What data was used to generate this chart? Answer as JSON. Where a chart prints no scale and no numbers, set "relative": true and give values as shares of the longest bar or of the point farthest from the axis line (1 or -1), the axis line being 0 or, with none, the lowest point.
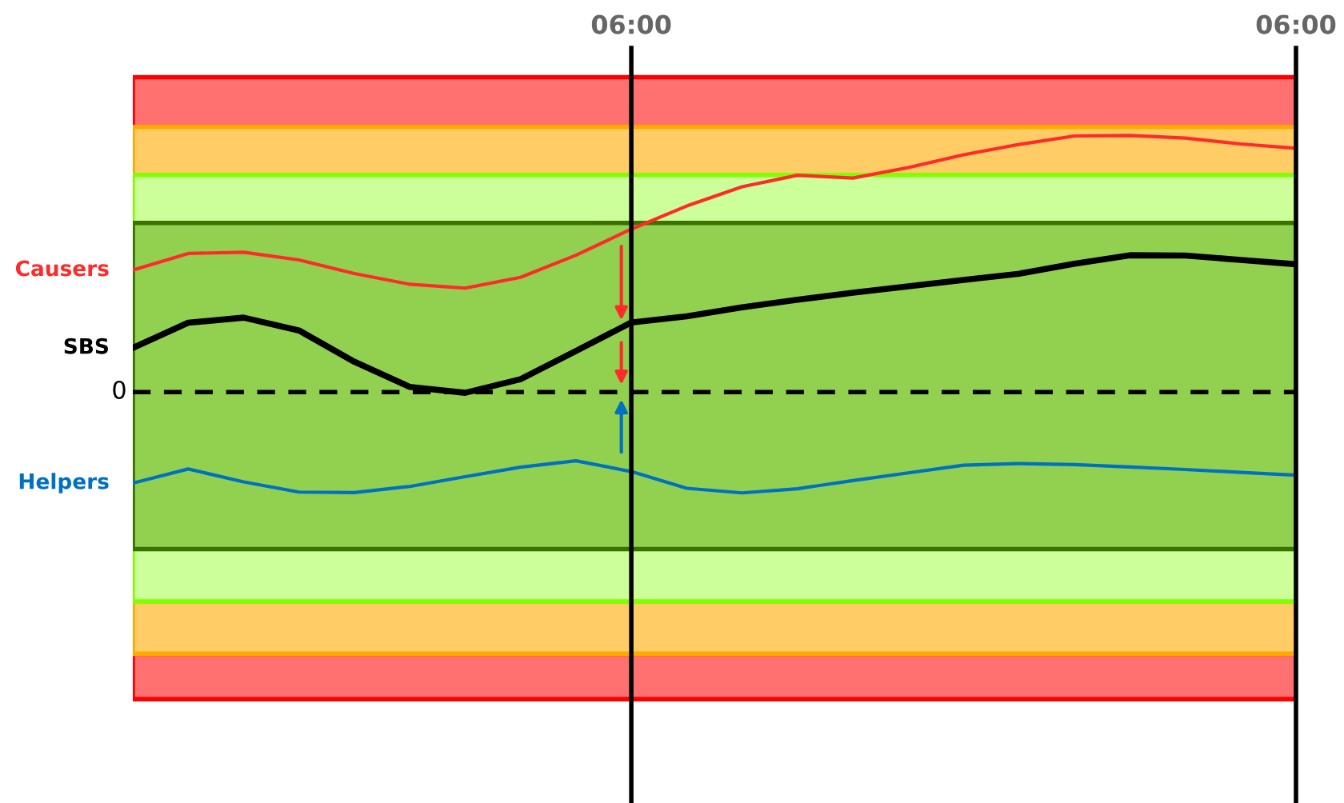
{
  "chart_data": {
    "type": "line",
    "relative": true,
    "tick_labels": "x",
    "categories": [
      null,
      null,
      null,
      null,
      null,
      null,
      null,
      null,
      null,
      "06:00",
      null,
      null,
      null,
      null,
      null,
      null,
      null,
      null,
      null,
      null,
      null,
      "06:00"
    ],
    "series": [
      {
        "name": "Causers",
        "color": "#ff2a2a",
        "values": [
          0.475,
          0.54,
          0.545,
          0.515,
          0.462,
          0.42,
          0.405,
          0.447,
          0.533,
          0.635,
          0.725,
          0.8,
          0.845,
          0.834,
          0.875,
          0.925,
          0.965,
          0.998,
          1.0,
          0.99,
          0.967,
          0.95
        ]
      },
      {
        "name": "SBS",
        "color": "#000000",
        "values": [
          0.172,
          0.27,
          0.29,
          0.24,
          0.118,
          0.02,
          -0.003,
          0.05,
          0.16,
          0.271,
          0.295,
          0.33,
          0.36,
          0.387,
          0.412,
          0.437,
          0.461,
          0.5,
          0.533,
          0.532,
          0.515,
          0.498
        ]
      },
      {
        "name": "Helpers",
        "color": "#0070c0",
        "values": [
          -0.355,
          -0.3,
          -0.35,
          -0.39,
          -0.392,
          -0.368,
          -0.33,
          -0.293,
          -0.268,
          -0.31,
          -0.375,
          -0.393,
          -0.377,
          -0.345,
          -0.315,
          -0.285,
          -0.279,
          -0.283,
          -0.292,
          -0.302,
          -0.313,
          -0.324
        ]
      }
    ],
    "bands": [
      {
        "axis": "y",
        "from": 1.033,
        "to": 1.227,
        "color": "#ff7070"
      },
      {
        "axis": "y",
        "from": 0.846,
        "to": 1.033,
        "color": "#ffcc66"
      },
      {
        "axis": "y",
        "from": 0.659,
        "to": 0.846,
        "color": "#ccff99"
      },
      {
        "axis": "y",
        "from": -0.612,
        "to": 0.659,
        "color": "#92d050"
      },
      {
        "axis": "y",
        "from": -0.816,
        "to": -0.612,
        "color": "#ccff99"
      },
      {
        "axis": "y",
        "from": -1.02,
        "to": -0.816,
        "color": "#ffcc66"
      },
      {
        "axis": "y",
        "from": -1.197,
        "to": -1.02,
        "color": "#ff7070"
      }
    ],
    "ref_lines": [
      {
        "axis": "y",
        "value": 0,
        "label": "0",
        "color": "#000000",
        "line_style": "dashed"
      },
      {
        "axis": "x",
        "value": "06:00",
        "color": "#000000"
      }
    ]
  }
}
